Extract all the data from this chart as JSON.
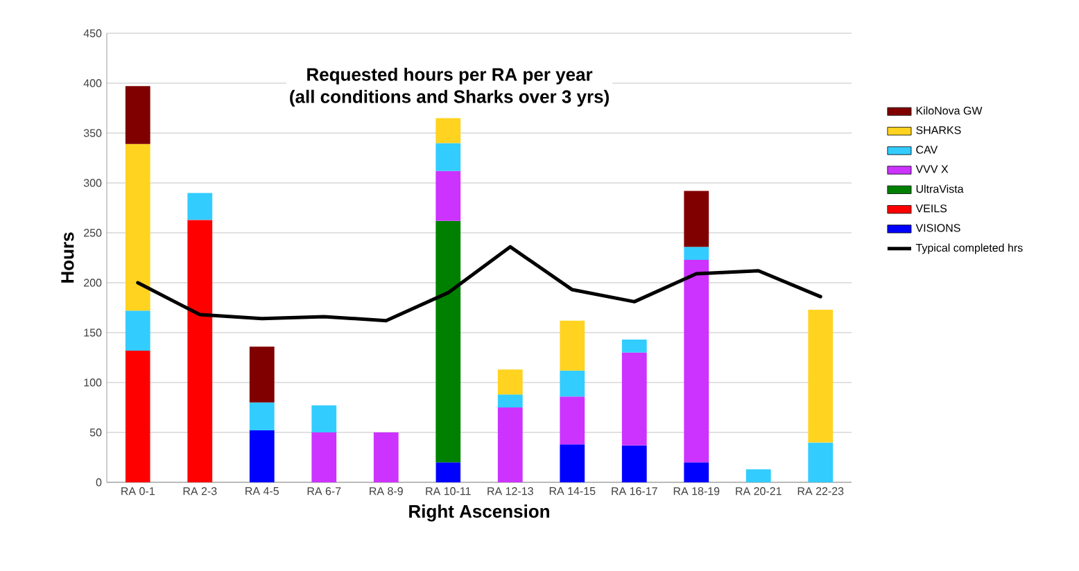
{
  "chart_data": {
    "type": "bar",
    "stacked": true,
    "title": "Requested hours per RA per year",
    "subtitle": "(all conditions and Sharks over 3 yrs)",
    "xlabel": "Right Ascension",
    "ylabel": "Hours",
    "categories": [
      "RA 0-1",
      "RA 2-3",
      "RA 4-5",
      "RA 6-7",
      "RA 8-9",
      "RA 10-11",
      "RA 12-13",
      "RA 14-15",
      "RA 16-17",
      "RA 18-19",
      "RA 20-21",
      "RA 22-23"
    ],
    "series": [
      {
        "name": "VISIONS",
        "color": "#0000ff",
        "values": [
          null,
          null,
          52,
          null,
          null,
          20,
          null,
          38,
          37,
          20,
          null,
          null
        ]
      },
      {
        "name": "VEILS",
        "color": "#ff0000",
        "values": [
          132,
          263,
          null,
          null,
          null,
          null,
          null,
          null,
          null,
          null,
          null,
          null
        ]
      },
      {
        "name": "UltraVista",
        "color": "#008000",
        "values": [
          null,
          null,
          null,
          null,
          null,
          242,
          null,
          null,
          null,
          null,
          null,
          null
        ]
      },
      {
        "name": "VVV X",
        "color": "#cc33ff",
        "values": [
          null,
          null,
          null,
          50,
          50,
          50,
          75,
          48,
          93,
          203,
          null,
          null
        ]
      },
      {
        "name": "CAV",
        "color": "#33ccff",
        "values": [
          40,
          27,
          28,
          27,
          null,
          28,
          13,
          26,
          13,
          13,
          13,
          40
        ]
      },
      {
        "name": "SHARKS",
        "color": "#ffd320",
        "values": [
          167,
          null,
          null,
          null,
          null,
          25,
          25,
          50,
          null,
          null,
          null,
          133
        ]
      },
      {
        "name": "KiloNova GW",
        "color": "#800000",
        "values": [
          58,
          null,
          56,
          null,
          null,
          null,
          null,
          null,
          null,
          56,
          null,
          null
        ]
      },
      {
        "name": "Typical completed hrs",
        "type": "line",
        "color": "#000000",
        "values": [
          200,
          168,
          164,
          166,
          162,
          190,
          236,
          193,
          181,
          209,
          212,
          186
        ]
      }
    ],
    "ylim": [
      0,
      450
    ],
    "yticks": [
      0,
      50,
      100,
      150,
      200,
      250,
      300,
      350,
      400,
      450
    ],
    "grid": "y",
    "legend": "right"
  }
}
